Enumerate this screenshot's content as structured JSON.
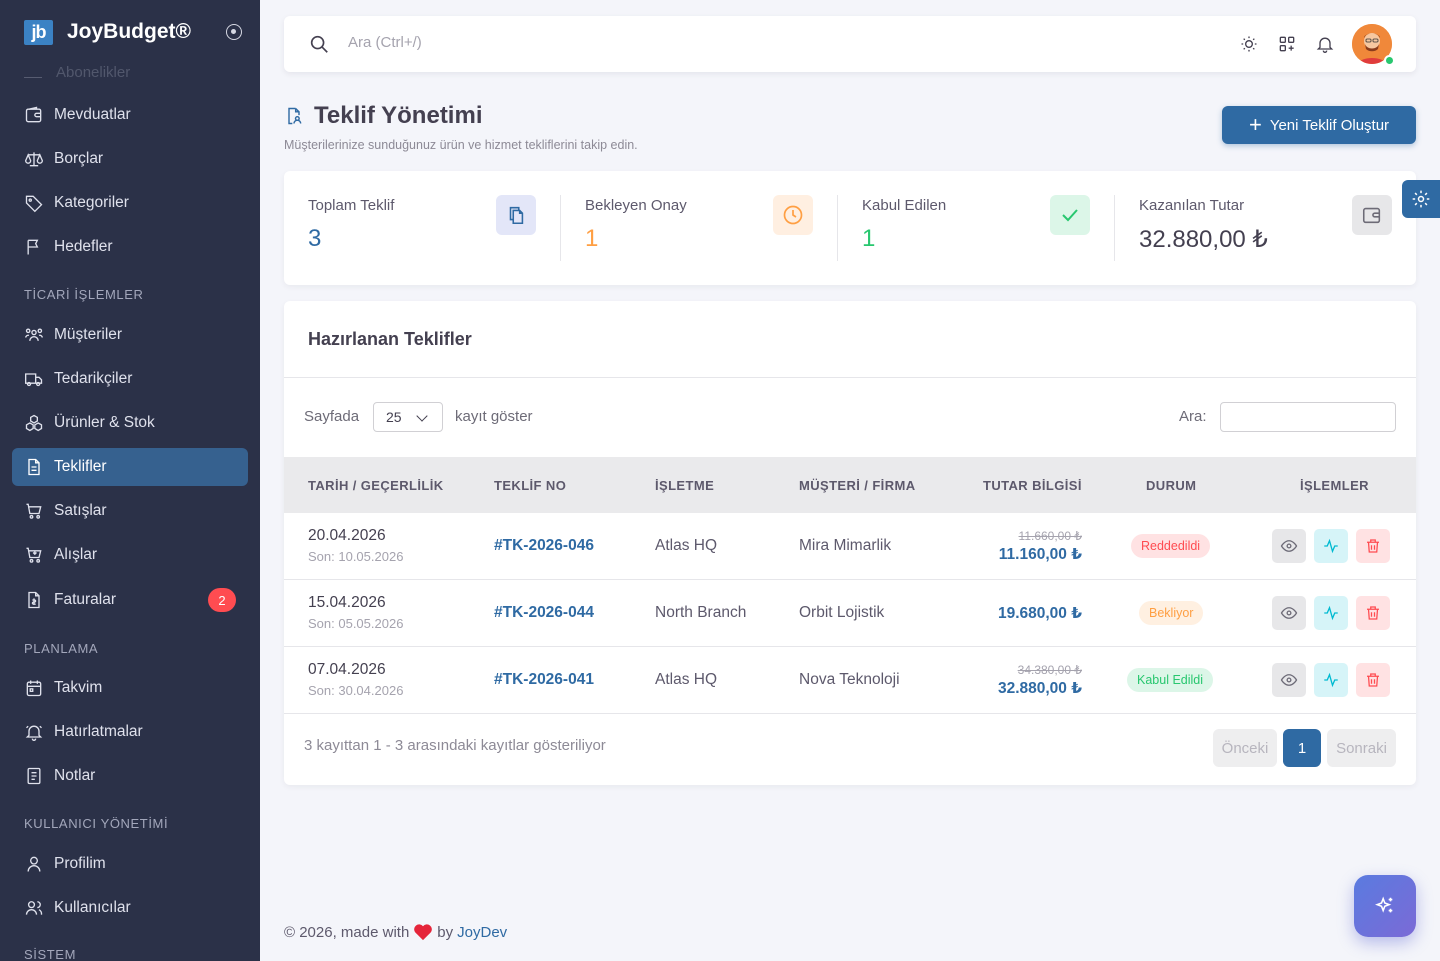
{
  "brand": {
    "logo": "jb",
    "name": "JoyBudget®"
  },
  "sidebar": {
    "faded_item": "Abonelikler",
    "items": [
      {
        "label": "Mevduatlar",
        "icon": "wallet-icon"
      },
      {
        "label": "Borçlar",
        "icon": "scale-icon"
      },
      {
        "label": "Kategoriler",
        "icon": "tag-icon"
      },
      {
        "label": "Hedefler",
        "icon": "flag-icon"
      },
      {
        "label": "Müşteriler",
        "icon": "users-group-icon"
      },
      {
        "label": "Tedarikçiler",
        "icon": "truck-icon"
      },
      {
        "label": "Ürünler & Stok",
        "icon": "boxes-icon"
      },
      {
        "label": "Teklifler",
        "icon": "file-text-icon"
      },
      {
        "label": "Satışlar",
        "icon": "cart-icon"
      },
      {
        "label": "Alışlar",
        "icon": "cart-down-icon"
      },
      {
        "label": "Faturalar",
        "icon": "invoice-icon",
        "badge": "2"
      },
      {
        "label": "Takvim",
        "icon": "calendar-icon"
      },
      {
        "label": "Hatırlatmalar",
        "icon": "bell-ring-icon"
      },
      {
        "label": "Notlar",
        "icon": "note-icon"
      },
      {
        "label": "Profilim",
        "icon": "user-icon"
      },
      {
        "label": "Kullanıcılar",
        "icon": "users-icon"
      }
    ],
    "sections": {
      "ticari": "TİCARİ İŞLEMLER",
      "planlama": "PLANLAMA",
      "kullanici": "KULLANICI YÖNETİMİ",
      "sistem": "SİSTEM"
    }
  },
  "topbar": {
    "search_placeholder": "Ara (Ctrl+/)"
  },
  "page": {
    "title": "Teklif Yönetimi",
    "subtitle": "Müşterilerinize sunduğunuz ürün ve hizmet tekliflerini takip edin.",
    "new_button": "Yeni Teklif Oluştur"
  },
  "stats": [
    {
      "label": "Toplam Teklif",
      "value": "3",
      "color": "#2f6aa3"
    },
    {
      "label": "Bekleyen Onay",
      "value": "1",
      "color": "#ff9f43"
    },
    {
      "label": "Kabul Edilen",
      "value": "1",
      "color": "#28c76f"
    },
    {
      "label": "Kazanılan Tutar",
      "value": "32.880,00 ₺",
      "color": "#444050"
    }
  ],
  "table": {
    "title": "Hazırlanan Teklifler",
    "length_prefix": "Sayfada",
    "length_value": "25",
    "length_suffix": "kayıt göster",
    "search_label": "Ara:",
    "columns": [
      "TARİH / GEÇERLİLİK",
      "TEKLİF NO",
      "İŞLETME",
      "MÜŞTERİ / FİRMA",
      "TUTAR BİLGİSİ",
      "DURUM",
      "İŞLEMLER"
    ],
    "rows": [
      {
        "date": "20.04.2026",
        "valid": "Son: 10.05.2026",
        "no": "#TK-2026-046",
        "business": "Atlas HQ",
        "customer": "Mira Mimarlik",
        "amount_old": "11.660,00 ₺",
        "amount": "11.160,00 ₺",
        "status": "Reddedildi"
      },
      {
        "date": "15.04.2026",
        "valid": "Son: 05.05.2026",
        "no": "#TK-2026-044",
        "business": "North Branch",
        "customer": "Orbit Lojistik",
        "amount_old": "",
        "amount": "19.680,00 ₺",
        "status": "Bekliyor"
      },
      {
        "date": "07.04.2026",
        "valid": "Son: 30.04.2026",
        "no": "#TK-2026-041",
        "business": "Atlas HQ",
        "customer": "Nova Teknoloji",
        "amount_old": "34.380,00 ₺",
        "amount": "32.880,00 ₺",
        "status": "Kabul Edildi"
      }
    ],
    "info": "3 kayıttan 1 - 3 arasındaki kayıtlar gösteriliyor",
    "pagination": {
      "prev": "Önceki",
      "current": "1",
      "next": "Sonraki"
    }
  },
  "footer": {
    "prefix": "© 2026, made with",
    "by": "by",
    "author": "JoyDev"
  },
  "status_colors": {
    "rejected": "#ff4c51",
    "pending": "#ff9f43",
    "accepted": "#28c76f"
  }
}
